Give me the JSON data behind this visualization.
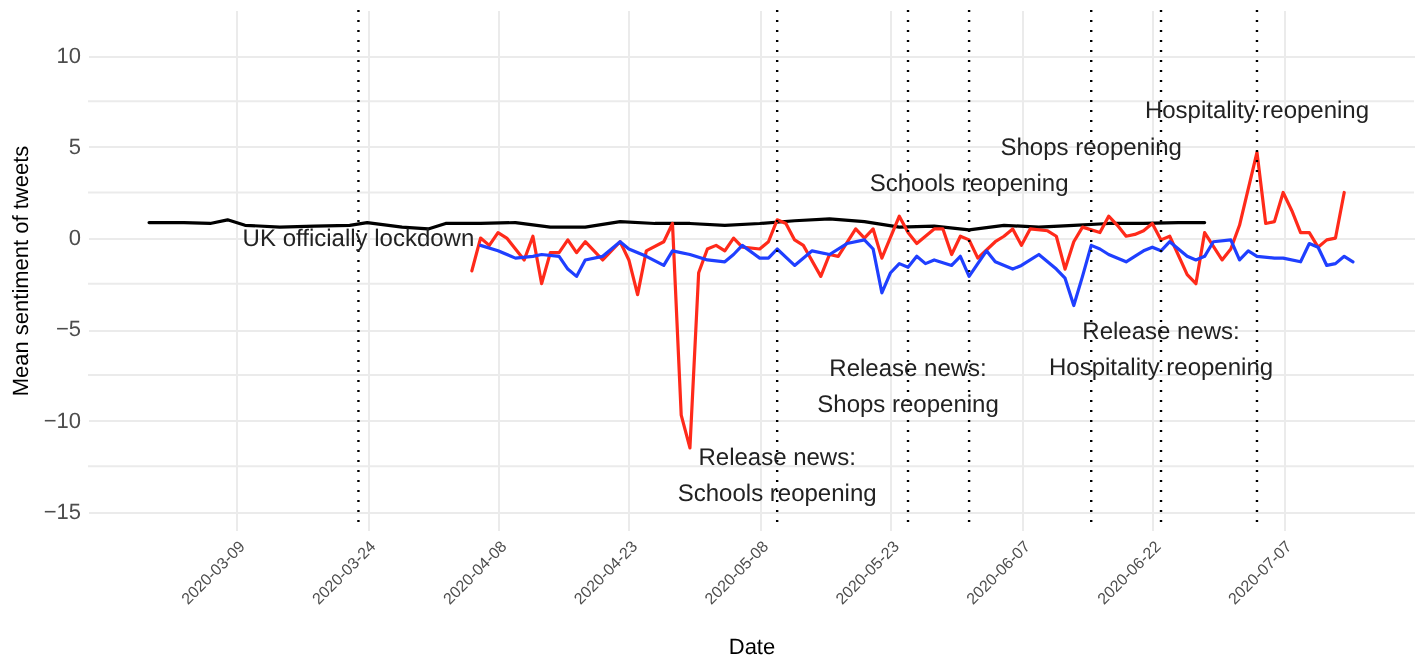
{
  "chart_data": {
    "type": "line",
    "xlabel": "Date",
    "ylabel": "Mean sentiment of tweets",
    "xlim": [
      "2020-02-21",
      "2020-07-22"
    ],
    "ylim": [
      -16,
      12.5
    ],
    "xticks": [
      "2020-03-09",
      "2020-03-24",
      "2020-04-08",
      "2020-04-23",
      "2020-05-08",
      "2020-05-23",
      "2020-06-07",
      "2020-06-22",
      "2020-07-07"
    ],
    "yticks": [
      -15,
      {
        "value": -12.5,
        "label": null
      },
      -10,
      {
        "value": -7.5,
        "label": null
      },
      -5,
      {
        "value": -2.5,
        "label": null
      },
      0,
      {
        "value": 2.5,
        "label": null
      },
      5,
      {
        "value": 7.5,
        "label": null
      },
      10
    ],
    "grid": true,
    "legend": false,
    "marker": "none",
    "line_style": "solid",
    "series": [
      {
        "color": "#000000",
        "x": [
          "2020-02-28",
          "2020-03-03",
          "2020-03-06",
          "2020-03-08",
          "2020-03-10",
          "2020-03-14",
          "2020-03-18",
          "2020-03-22",
          "2020-03-24",
          "2020-03-28",
          "2020-03-31",
          "2020-04-02",
          "2020-04-06",
          "2020-04-10",
          "2020-04-14",
          "2020-04-18",
          "2020-04-22",
          "2020-04-26",
          "2020-04-30",
          "2020-05-04",
          "2020-05-08",
          "2020-05-12",
          "2020-05-16",
          "2020-05-20",
          "2020-05-24",
          "2020-05-28",
          "2020-06-01",
          "2020-06-05",
          "2020-06-09",
          "2020-06-13",
          "2020-06-17",
          "2020-06-21",
          "2020-06-25",
          "2020-06-28"
        ],
        "values": [
          0.85,
          0.85,
          0.8,
          1.0,
          0.7,
          0.6,
          0.65,
          0.7,
          0.85,
          0.6,
          0.5,
          0.8,
          0.8,
          0.85,
          0.6,
          0.6,
          0.9,
          0.8,
          0.8,
          0.7,
          0.8,
          0.95,
          1.05,
          0.9,
          0.6,
          0.65,
          0.45,
          0.7,
          0.6,
          0.7,
          0.8,
          0.8,
          0.85,
          0.85
        ]
      },
      {
        "color": "#ff2a1a",
        "x": [
          "2020-04-05",
          "2020-04-06",
          "2020-04-07",
          "2020-04-08",
          "2020-04-09",
          "2020-04-11",
          "2020-04-12",
          "2020-04-13",
          "2020-04-14",
          "2020-04-15",
          "2020-04-16",
          "2020-04-17",
          "2020-04-18",
          "2020-04-20",
          "2020-04-22",
          "2020-04-23",
          "2020-04-24",
          "2020-04-25",
          "2020-04-27",
          "2020-04-28",
          "2020-04-29",
          "2020-04-30",
          "2020-05-01",
          "2020-05-02",
          "2020-05-03",
          "2020-05-04",
          "2020-05-05",
          "2020-05-06",
          "2020-05-08",
          "2020-05-09",
          "2020-05-10",
          "2020-05-11",
          "2020-05-12",
          "2020-05-13",
          "2020-05-15",
          "2020-05-16",
          "2020-05-17",
          "2020-05-19",
          "2020-05-20",
          "2020-05-21",
          "2020-05-22",
          "2020-05-24",
          "2020-05-25",
          "2020-05-26",
          "2020-05-28",
          "2020-05-29",
          "2020-05-30",
          "2020-05-31",
          "2020-06-01",
          "2020-06-02",
          "2020-06-04",
          "2020-06-05",
          "2020-06-06",
          "2020-06-07",
          "2020-06-08",
          "2020-06-10",
          "2020-06-11",
          "2020-06-12",
          "2020-06-13",
          "2020-06-14",
          "2020-06-16",
          "2020-06-17",
          "2020-06-18",
          "2020-06-19",
          "2020-06-20",
          "2020-06-21",
          "2020-06-22",
          "2020-06-23",
          "2020-06-24",
          "2020-06-26",
          "2020-06-27",
          "2020-06-28",
          "2020-06-30",
          "2020-07-01",
          "2020-07-02",
          "2020-07-04",
          "2020-07-05",
          "2020-07-06",
          "2020-07-07",
          "2020-07-08",
          "2020-07-09",
          "2020-07-10",
          "2020-07-11",
          "2020-07-12",
          "2020-07-13",
          "2020-07-14"
        ],
        "values": [
          -1.8,
          0.0,
          -0.4,
          0.3,
          0.0,
          -1.2,
          0.1,
          -2.5,
          -0.8,
          -0.8,
          -0.1,
          -0.8,
          -0.2,
          -1.2,
          -0.2,
          -1.2,
          -3.1,
          -0.7,
          -0.2,
          0.8,
          -9.7,
          -11.5,
          -1.9,
          -0.6,
          -0.4,
          -0.7,
          0.0,
          -0.5,
          -0.6,
          -0.2,
          1.0,
          0.8,
          -0.1,
          -0.4,
          -2.1,
          -0.9,
          -1.0,
          0.5,
          0.0,
          0.5,
          -1.1,
          1.2,
          0.3,
          -0.3,
          0.5,
          0.5,
          -0.9,
          0.1,
          -0.1,
          -1.1,
          -0.2,
          0.1,
          0.5,
          -0.4,
          0.5,
          0.4,
          0.1,
          -1.7,
          -0.2,
          0.6,
          0.3,
          1.2,
          0.7,
          0.1,
          0.2,
          0.4,
          0.8,
          -0.1,
          0.1,
          -2.0,
          -2.5,
          0.3,
          -1.2,
          -0.6,
          0.7,
          4.7,
          0.8,
          0.9,
          2.5,
          1.5,
          0.3,
          0.3,
          -0.5,
          -0.1,
          0.0,
          2.5
        ]
      },
      {
        "color": "#1f3fff",
        "x": [
          "2020-04-06",
          "2020-04-08",
          "2020-04-10",
          "2020-04-12",
          "2020-04-13",
          "2020-04-15",
          "2020-04-16",
          "2020-04-17",
          "2020-04-18",
          "2020-04-20",
          "2020-04-22",
          "2020-04-23",
          "2020-04-25",
          "2020-04-27",
          "2020-04-28",
          "2020-04-30",
          "2020-05-02",
          "2020-05-04",
          "2020-05-05",
          "2020-05-06",
          "2020-05-08",
          "2020-05-09",
          "2020-05-10",
          "2020-05-12",
          "2020-05-14",
          "2020-05-16",
          "2020-05-18",
          "2020-05-20",
          "2020-05-21",
          "2020-05-22",
          "2020-05-23",
          "2020-05-24",
          "2020-05-25",
          "2020-05-26",
          "2020-05-27",
          "2020-05-28",
          "2020-05-30",
          "2020-05-31",
          "2020-06-01",
          "2020-06-03",
          "2020-06-04",
          "2020-06-06",
          "2020-06-07",
          "2020-06-09",
          "2020-06-11",
          "2020-06-12",
          "2020-06-13",
          "2020-06-14",
          "2020-06-15",
          "2020-06-16",
          "2020-06-17",
          "2020-06-19",
          "2020-06-21",
          "2020-06-22",
          "2020-06-23",
          "2020-06-24",
          "2020-06-26",
          "2020-06-27",
          "2020-06-28",
          "2020-06-29",
          "2020-07-01",
          "2020-07-02",
          "2020-07-03",
          "2020-07-04",
          "2020-07-06",
          "2020-07-07",
          "2020-07-09",
          "2020-07-10",
          "2020-07-11",
          "2020-07-12",
          "2020-07-13",
          "2020-07-14",
          "2020-07-15"
        ],
        "values": [
          -0.4,
          -0.7,
          -1.1,
          -1.0,
          -0.9,
          -1.0,
          -1.7,
          -2.1,
          -1.2,
          -1.0,
          -0.2,
          -0.6,
          -1.0,
          -1.5,
          -0.7,
          -0.9,
          -1.2,
          -1.3,
          -0.9,
          -0.4,
          -1.1,
          -1.1,
          -0.6,
          -1.5,
          -0.7,
          -0.9,
          -0.3,
          -0.1,
          -0.6,
          -3.0,
          -1.9,
          -1.4,
          -1.6,
          -1.0,
          -1.4,
          -1.2,
          -1.5,
          -1.0,
          -2.1,
          -0.7,
          -1.3,
          -1.7,
          -1.5,
          -0.9,
          -1.7,
          -2.2,
          -3.7,
          -2.1,
          -0.4,
          -0.6,
          -0.9,
          -1.3,
          -0.7,
          -0.5,
          -0.7,
          -0.2,
          -1.0,
          -1.2,
          -1.0,
          -0.2,
          -0.1,
          -1.2,
          -0.7,
          -1.0,
          -1.1,
          -1.1,
          -1.3,
          -0.3,
          -0.5,
          -1.5,
          -1.4,
          -1.0,
          -1.3
        ]
      }
    ],
    "ref_lines": [
      {
        "axis": "x",
        "value": "2020-03-23",
        "line_style": "dotted"
      },
      {
        "axis": "x",
        "value": "2020-05-10",
        "line_style": "dotted"
      },
      {
        "axis": "x",
        "value": "2020-05-25",
        "line_style": "dotted"
      },
      {
        "axis": "x",
        "value": "2020-06-01",
        "line_style": "dotted"
      },
      {
        "axis": "x",
        "value": "2020-06-15",
        "line_style": "dotted"
      },
      {
        "axis": "x",
        "value": "2020-06-23",
        "line_style": "dotted"
      },
      {
        "axis": "x",
        "value": "2020-07-04",
        "line_style": "dotted"
      }
    ],
    "annotations": [
      {
        "text": "UK officially lockdown",
        "x": "2020-03-23",
        "y": 0
      },
      {
        "text": "Release news:\nSchools reopening",
        "x": "2020-05-10",
        "y": -12
      },
      {
        "text": "Release news:\nShops reopening",
        "x": "2020-05-25",
        "y": -7.1
      },
      {
        "text": "Schools reopening",
        "x": "2020-06-01",
        "y": 3
      },
      {
        "text": "Shops reopening",
        "x": "2020-06-15",
        "y": 5
      },
      {
        "text": "Release news:\nHospitality reopening",
        "x": "2020-06-23",
        "y": -5.1
      },
      {
        "text": "Hospitality reopening",
        "x": "2020-07-04",
        "y": 7
      }
    ]
  }
}
